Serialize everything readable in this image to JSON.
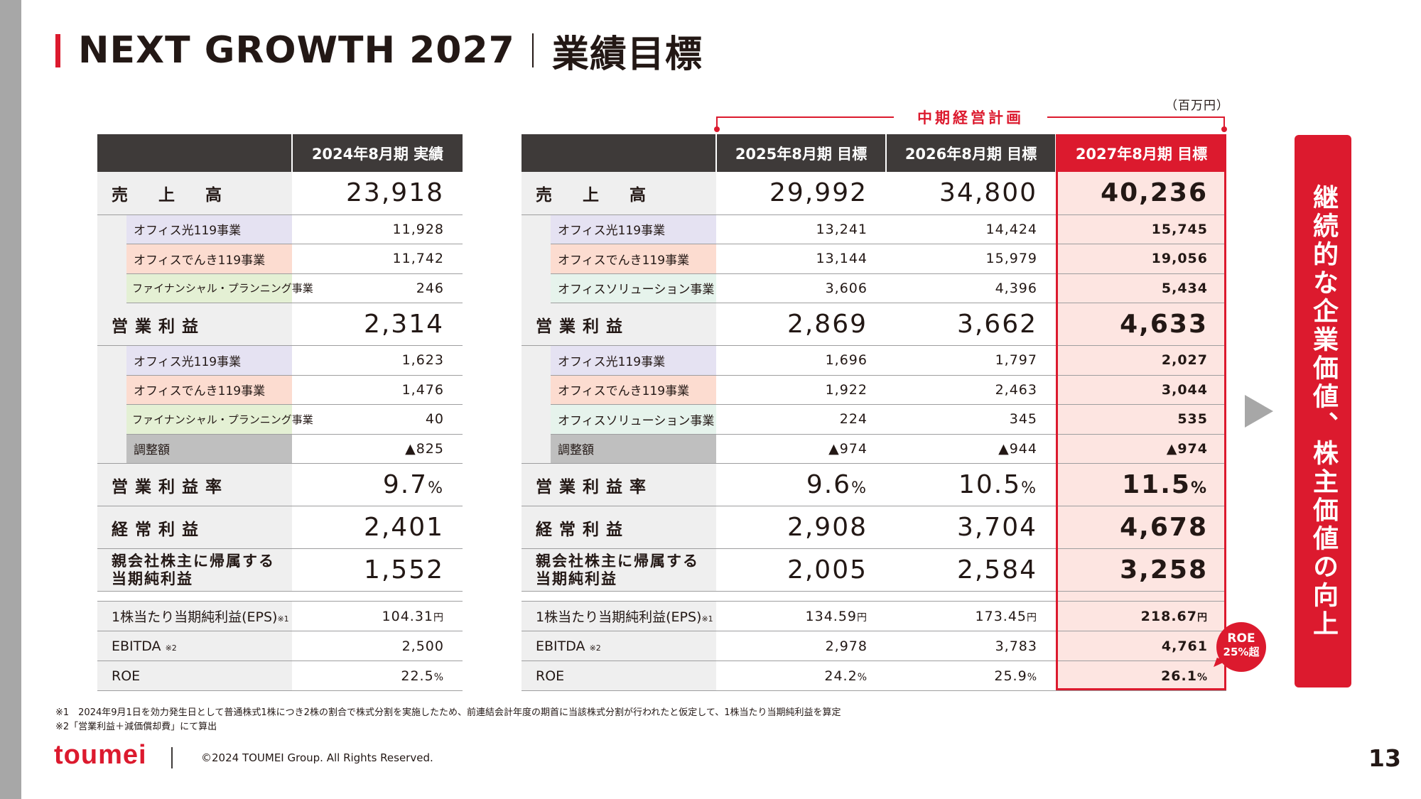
{
  "header": {
    "title_en": "NEXT GROWTH 2027",
    "title_jp": "業績目標"
  },
  "unit": "（百万円）",
  "plan_label": "中期経営計画",
  "left_table": {
    "header": [
      "",
      "2024年8月期 実績"
    ],
    "rows": [
      {
        "label": "売　上　高",
        "value": "23,918"
      },
      {
        "label": "オフィス光119事業",
        "value": "11,928"
      },
      {
        "label": "オフィスでんき119事業",
        "value": "11,742"
      },
      {
        "label": "ファイナンシャル・プランニング事業",
        "value": "246"
      },
      {
        "label": "営業利益",
        "value": "2,314"
      },
      {
        "label": "オフィス光119事業",
        "value": "1,623"
      },
      {
        "label": "オフィスでんき119事業",
        "value": "1,476"
      },
      {
        "label": "ファイナンシャル・プランニング事業",
        "value": "40"
      },
      {
        "label": "調整額",
        "value": "▲825"
      },
      {
        "label": "営業利益率",
        "value": "9.7",
        "unit": "%"
      },
      {
        "label": "経常利益",
        "value": "2,401"
      },
      {
        "label": "親会社株主に帰属する当期純利益",
        "label_line1": "親会社株主に帰属する",
        "label_line2": "当期純利益",
        "value": "1,552"
      },
      {
        "label": "1株当たり当期純利益(EPS)",
        "note": "※1",
        "value": "104.31",
        "unit": "円"
      },
      {
        "label": "EBITDA",
        "note": "※2",
        "value": "2,500"
      },
      {
        "label": "ROE",
        "value": "22.5",
        "unit": "%"
      }
    ]
  },
  "right_table": {
    "header": [
      "",
      "2025年8月期 目標",
      "2026年8月期 目標",
      "2027年8月期 目標"
    ],
    "rows": [
      {
        "label": "売　上　高",
        "values": [
          "29,992",
          "34,800",
          "40,236"
        ]
      },
      {
        "label": "オフィス光119事業",
        "values": [
          "13,241",
          "14,424",
          "15,745"
        ]
      },
      {
        "label": "オフィスでんき119事業",
        "values": [
          "13,144",
          "15,979",
          "19,056"
        ]
      },
      {
        "label": "オフィスソリューション事業",
        "values": [
          "3,606",
          "4,396",
          "5,434"
        ]
      },
      {
        "label": "営業利益",
        "values": [
          "2,869",
          "3,662",
          "4,633"
        ]
      },
      {
        "label": "オフィス光119事業",
        "values": [
          "1,696",
          "1,797",
          "2,027"
        ]
      },
      {
        "label": "オフィスでんき119事業",
        "values": [
          "1,922",
          "2,463",
          "3,044"
        ]
      },
      {
        "label": "オフィスソリューション事業",
        "values": [
          "224",
          "345",
          "535"
        ]
      },
      {
        "label": "調整額",
        "values": [
          "▲974",
          "▲944",
          "▲974"
        ]
      },
      {
        "label": "営業利益率",
        "values": [
          "9.6",
          "10.5",
          "11.5"
        ],
        "unit": "%"
      },
      {
        "label": "経常利益",
        "values": [
          "2,908",
          "3,704",
          "4,678"
        ]
      },
      {
        "label": "親会社株主に帰属する当期純利益",
        "label_line1": "親会社株主に帰属する",
        "label_line2": "当期純利益",
        "values": [
          "2,005",
          "2,584",
          "3,258"
        ]
      },
      {
        "label": "1株当たり当期純利益(EPS)",
        "note": "※1",
        "values": [
          "134.59",
          "173.45",
          "218.67"
        ],
        "unit": "円"
      },
      {
        "label": "EBITDA",
        "note": "※2",
        "values": [
          "2,978",
          "3,783",
          "4,761"
        ]
      },
      {
        "label": "ROE",
        "values": [
          "24.2",
          "25.9",
          "26.1"
        ],
        "unit": "%"
      }
    ]
  },
  "roe_badge": {
    "line1": "ROE",
    "line2": "25%超"
  },
  "vision": "継続的な企業価値、株主価値の向上",
  "footnotes": [
    "※1　2024年9月1日を効力発生日として普通株式1株につき2株の割合で株式分割を実施したため、前連結会計年度の期首に当該株式分割が行われたと仮定して、1株当たり当期純利益を算定",
    "※2「営業利益＋減価償却費」にて算出"
  ],
  "footer": {
    "logo": "toumei",
    "copyright": "©2024 TOUMEI Group. All Rights Reserved.",
    "page": "13"
  },
  "colors": {
    "accent": "#dc1a2e",
    "header_dark": "#3e3a39",
    "highlight_bg": "#fde5e1",
    "label_bg": "#efefef"
  }
}
